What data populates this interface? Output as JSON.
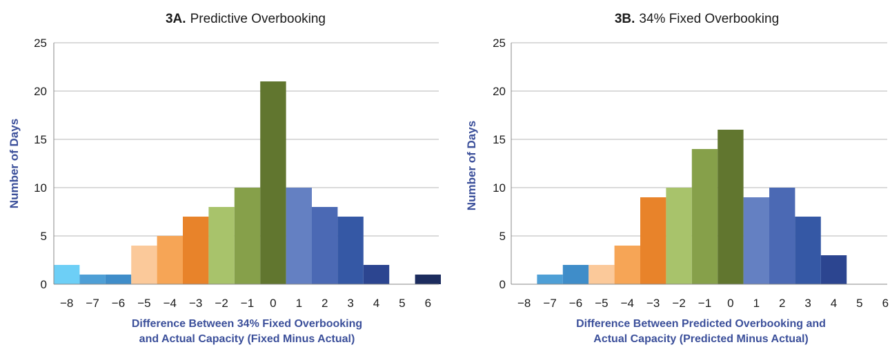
{
  "chart_data": [
    {
      "type": "bar",
      "title_prefix": "3A.",
      "title": "Predictive Overbooking",
      "ylabel": "Number of Days",
      "xlabel_line1": "Difference Between 34% Fixed Overbooking",
      "xlabel_line2": "and Actual Capacity (Fixed Minus Actual)",
      "ylim": [
        0,
        25
      ],
      "yticks": [
        "0",
        "5",
        "10",
        "15",
        "20",
        "25"
      ],
      "grid": true,
      "categories": [
        "−8",
        "−7",
        "−6",
        "−5",
        "−4",
        "−3",
        "−2",
        "−1",
        "0",
        "1",
        "2",
        "3",
        "4",
        "5",
        "6"
      ],
      "values": [
        2,
        1,
        1,
        4,
        5,
        7,
        8,
        10,
        21,
        10,
        8,
        7,
        2,
        0,
        1
      ]
    },
    {
      "type": "bar",
      "title_prefix": "3B.",
      "title": "34% Fixed Overbooking",
      "ylabel": "Number of Days",
      "xlabel_line1": "Difference Between Predicted Overbooking and",
      "xlabel_line2": "Actual Capacity (Predicted Minus Actual)",
      "ylim": [
        0,
        25
      ],
      "yticks": [
        "0",
        "5",
        "10",
        "15",
        "20",
        "25"
      ],
      "grid": true,
      "categories": [
        "−8",
        "−7",
        "−6",
        "−5",
        "−4",
        "−3",
        "−2",
        "−1",
        "0",
        "1",
        "2",
        "3",
        "4",
        "5",
        "6"
      ],
      "values": [
        0,
        1,
        2,
        2,
        4,
        9,
        10,
        14,
        16,
        9,
        10,
        7,
        3,
        0,
        0
      ]
    }
  ],
  "colors": [
    "#6dcff6",
    "#4e9fd6",
    "#3f8dc9",
    "#fbc99a",
    "#f6a556",
    "#e8832a",
    "#a8c36b",
    "#86a04a",
    "#61762f",
    "#6480c2",
    "#4b69b4",
    "#3558a5",
    "#2c4590",
    "#24387a",
    "#1c2c5e"
  ]
}
